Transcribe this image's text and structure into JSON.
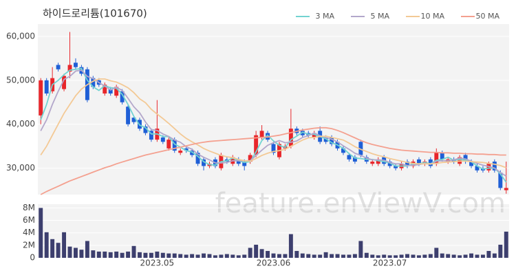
{
  "chart_data": [
    {
      "type": "candlestick",
      "title": "하이드로리튬(101670)",
      "watermark": "feature.enViewV.com",
      "up_color": "#e8262b",
      "down_color": "#1f5fd6",
      "open": [
        42000,
        50000,
        47500,
        53500,
        48000,
        52000,
        54000,
        53000,
        52500,
        50500,
        50000,
        47000,
        48000,
        46500,
        47500,
        44000,
        41500,
        41000,
        39500,
        38500,
        36500,
        37000,
        34500,
        36500,
        33500,
        34500,
        34000,
        33500,
        32000,
        30500,
        32000,
        30000,
        32000,
        31000,
        32000,
        31500,
        31500,
        33000,
        37000,
        38000,
        35500,
        32500,
        34500,
        35000,
        39000,
        38500,
        38000,
        37000,
        38500,
        37000,
        37000,
        36000,
        34500,
        33000,
        32500,
        36000,
        32500,
        31000,
        31000,
        32500,
        31500,
        30500,
        30000,
        31500,
        30500,
        32000,
        31000,
        32000,
        31000,
        33500,
        31500,
        32000,
        31000,
        33000,
        31500,
        30500,
        30000,
        29500,
        31500,
        29000,
        25000
      ],
      "high": [
        50500,
        50500,
        53000,
        54000,
        51500,
        61000,
        55000,
        53500,
        53000,
        51000,
        50500,
        49500,
        48500,
        49000,
        48000,
        44500,
        42000,
        41500,
        40000,
        39000,
        45500,
        37500,
        37000,
        37000,
        34500,
        35000,
        34500,
        34000,
        32500,
        31500,
        32500,
        33500,
        32500,
        33000,
        32500,
        32000,
        33500,
        38500,
        39800,
        38500,
        36000,
        36000,
        35500,
        43500,
        39500,
        39000,
        38500,
        38500,
        39500,
        37500,
        37500,
        36500,
        35000,
        33500,
        33000,
        36500,
        33000,
        32000,
        32500,
        33000,
        32000,
        31000,
        31500,
        32000,
        32000,
        32500,
        32000,
        32500,
        34500,
        34000,
        32500,
        32500,
        33000,
        33500,
        32000,
        31000,
        30500,
        31500,
        32000,
        29500,
        31500
      ],
      "low": [
        40000,
        46500,
        47000,
        52000,
        47500,
        50500,
        52500,
        51000,
        45000,
        48000,
        48500,
        46500,
        46500,
        46000,
        44500,
        39500,
        40000,
        38500,
        37500,
        36000,
        36000,
        35500,
        34000,
        33500,
        33000,
        33500,
        32500,
        30500,
        29500,
        30000,
        30000,
        29500,
        31000,
        30500,
        30500,
        29500,
        31000,
        32500,
        36500,
        36000,
        33000,
        32000,
        34000,
        34500,
        37500,
        37000,
        37000,
        36500,
        35500,
        35500,
        35000,
        34000,
        33000,
        31500,
        31000,
        32500,
        31000,
        30500,
        30500,
        30500,
        30000,
        29500,
        29500,
        30000,
        30000,
        30500,
        30500,
        30000,
        30500,
        31500,
        31000,
        31000,
        30500,
        31000,
        30000,
        29000,
        29000,
        29000,
        29000,
        25000,
        24200
      ],
      "close": [
        50000,
        47000,
        50500,
        52500,
        51000,
        53500,
        53000,
        51500,
        45500,
        48500,
        49000,
        49000,
        47000,
        48500,
        45000,
        40000,
        40500,
        39000,
        38000,
        36500,
        39000,
        36000,
        36500,
        34000,
        34000,
        34000,
        33000,
        31000,
        30500,
        31000,
        30500,
        33000,
        31500,
        32500,
        31000,
        30500,
        33000,
        37500,
        38500,
        36500,
        33500,
        35500,
        35000,
        39000,
        38000,
        37500,
        37500,
        38000,
        36000,
        36000,
        35500,
        34500,
        33500,
        32000,
        31500,
        33000,
        31500,
        31500,
        32000,
        31000,
        30500,
        30000,
        31000,
        30500,
        31500,
        31000,
        31500,
        30500,
        33500,
        32000,
        32000,
        31500,
        32500,
        31500,
        30500,
        29500,
        29500,
        31000,
        29500,
        25500,
        25500
      ],
      "series": [
        {
          "name": "3 MA",
          "color": "#72d3d1",
          "values": [
            41000,
            44500,
            49000,
            50000,
            51300,
            52300,
            52500,
            52700,
            50000,
            48500,
            47700,
            48800,
            48300,
            48200,
            46800,
            44500,
            41800,
            39800,
            39200,
            37800,
            37800,
            37200,
            37200,
            35500,
            34800,
            34000,
            33700,
            32700,
            31500,
            30800,
            30700,
            31500,
            31700,
            32300,
            31700,
            31300,
            31500,
            33700,
            36300,
            37500,
            36200,
            35200,
            34700,
            36500,
            37300,
            38200,
            37700,
            37700,
            37200,
            36700,
            35800,
            35300,
            34500,
            33300,
            32300,
            32200,
            32000,
            32000,
            31700,
            31500,
            31200,
            30500,
            30500,
            30500,
            31000,
            31000,
            31300,
            31000,
            31800,
            32000,
            32500,
            31800,
            32000,
            31800,
            31500,
            30500,
            29800,
            30000,
            30000,
            28700,
            26800
          ]
        },
        {
          "name": "5 MA",
          "color": "#b3a7cb",
          "values": [
            38500,
            41000,
            44500,
            47500,
            50200,
            50900,
            52100,
            52300,
            50900,
            50400,
            49500,
            48700,
            47800,
            48400,
            47700,
            45900,
            44000,
            42600,
            40500,
            38800,
            38600,
            37800,
            37200,
            36400,
            35900,
            34900,
            34300,
            33200,
            32500,
            31900,
            31200,
            31200,
            31300,
            31700,
            31700,
            31700,
            31700,
            32900,
            34100,
            35200,
            35800,
            36300,
            35800,
            35900,
            36200,
            37000,
            37400,
            38000,
            37400,
            37000,
            36600,
            36000,
            35100,
            34300,
            33400,
            32900,
            32300,
            31900,
            31900,
            31800,
            31300,
            31000,
            31000,
            30600,
            30700,
            30800,
            31100,
            30900,
            31600,
            31700,
            31700,
            31900,
            32300,
            32100,
            31600,
            31100,
            30700,
            30400,
            30000,
            29000,
            28200
          ]
        },
        {
          "name": "10 MA",
          "color": "#f3c995",
          "values": [
            33000,
            35000,
            37500,
            40000,
            42500,
            44500,
            46500,
            48000,
            49000,
            49800,
            50300,
            50300,
            49900,
            49600,
            49000,
            48300,
            47200,
            45800,
            44900,
            43400,
            42300,
            41300,
            40200,
            39000,
            37800,
            36800,
            36000,
            35300,
            34500,
            33900,
            33400,
            32900,
            32600,
            32400,
            32000,
            31700,
            31600,
            32200,
            32900,
            33400,
            33800,
            34000,
            34300,
            35000,
            35700,
            36400,
            36900,
            37000,
            37200,
            37300,
            37000,
            36700,
            36400,
            35700,
            34900,
            34300,
            33800,
            33300,
            32900,
            32600,
            32200,
            31900,
            31600,
            31300,
            31100,
            31000,
            31000,
            31000,
            31100,
            31300,
            31400,
            31500,
            31600,
            31600,
            31500,
            31400,
            31300,
            31100,
            30900,
            30600,
            30100
          ]
        },
        {
          "name": "50 MA",
          "color": "#f4a08f",
          "values": [
            24000,
            24700,
            25300,
            25900,
            26500,
            27100,
            27600,
            28100,
            28600,
            29100,
            29600,
            30100,
            30500,
            31000,
            31400,
            31800,
            32200,
            32600,
            33000,
            33300,
            33600,
            33900,
            34200,
            34500,
            34800,
            35100,
            35400,
            35700,
            35900,
            36100,
            36200,
            36300,
            36400,
            36500,
            36600,
            36700,
            36800,
            36900,
            37000,
            37100,
            37300,
            37500,
            37800,
            38100,
            38400,
            38700,
            38900,
            39100,
            39200,
            39200,
            39000,
            38600,
            38100,
            37500,
            36900,
            36300,
            35800,
            35400,
            35100,
            34800,
            34500,
            34300,
            34100,
            34000,
            33900,
            33800,
            33700,
            33600,
            33600,
            33500,
            33500,
            33400,
            33400,
            33300,
            33300,
            33200,
            33200,
            33100,
            33100,
            33000,
            33000
          ]
        }
      ],
      "ylim": [
        24000,
        62800
      ],
      "yticks": [
        {
          "value": 30000,
          "label": "30,000"
        },
        {
          "value": 40000,
          "label": "40,000"
        },
        {
          "value": 50000,
          "label": "50,000"
        },
        {
          "value": 60000,
          "label": "60,000"
        }
      ],
      "grid": true
    },
    {
      "type": "bar",
      "color": "#3d3f6e",
      "categories": [
        null,
        null,
        null,
        null,
        null,
        null,
        null,
        null,
        null,
        null,
        null,
        null,
        null,
        null,
        null,
        null,
        null,
        null,
        null,
        null,
        "2023.05",
        null,
        null,
        null,
        null,
        null,
        null,
        null,
        null,
        null,
        null,
        null,
        null,
        null,
        null,
        null,
        null,
        null,
        null,
        null,
        "2023.06",
        null,
        null,
        null,
        null,
        null,
        null,
        null,
        null,
        null,
        null,
        null,
        null,
        null,
        null,
        null,
        null,
        null,
        null,
        null,
        "2023.07",
        null,
        null,
        null,
        null,
        null,
        null,
        null,
        null,
        null,
        null,
        null,
        null,
        null,
        null,
        null,
        null,
        null,
        null,
        null,
        null
      ],
      "values": [
        8000000,
        4100000,
        3000000,
        2400000,
        4100000,
        1800000,
        1600000,
        1300000,
        2700000,
        1200000,
        1000000,
        1000000,
        900000,
        1000000,
        800000,
        1000000,
        1900000,
        900000,
        800000,
        800000,
        1000000,
        800000,
        700000,
        700000,
        600000,
        500000,
        600000,
        500000,
        700000,
        600000,
        400000,
        500000,
        600000,
        500000,
        400000,
        500000,
        1600000,
        2100000,
        1400000,
        1100000,
        700000,
        600000,
        600000,
        3800000,
        1100000,
        700000,
        600000,
        500000,
        500000,
        900000,
        600000,
        600000,
        500000,
        500000,
        600000,
        2700000,
        800000,
        500000,
        400000,
        500000,
        400000,
        400000,
        500000,
        600000,
        500000,
        400000,
        500000,
        600000,
        1600000,
        700000,
        600000,
        500000,
        400000,
        500000,
        700000,
        500000,
        500000,
        1100000,
        700000,
        2100000,
        4200000
      ],
      "ylim": [
        0,
        8600000
      ],
      "yticks": [
        0,
        {
          "value": 2000000,
          "label": "2M"
        },
        {
          "value": 4000000,
          "label": "4M"
        },
        {
          "value": 6000000,
          "label": "6M"
        },
        {
          "value": 8000000,
          "label": "8M"
        }
      ],
      "grid": true
    }
  ]
}
